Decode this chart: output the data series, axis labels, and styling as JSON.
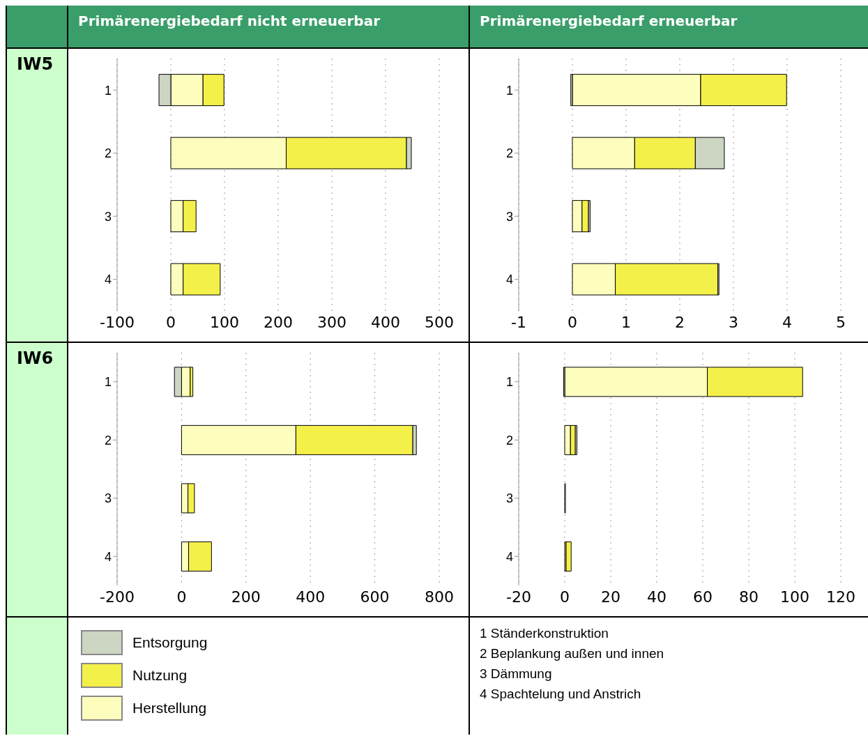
{
  "chart_data": [
    {
      "type": "bar",
      "orientation": "horizontal",
      "stacked": true,
      "title": "Primärenergiebedarf nicht erneuerbar",
      "subtitle": "IW5",
      "categories": [
        "1",
        "2",
        "3",
        "4"
      ],
      "xlim": [
        -100,
        500
      ],
      "xticks": [
        -100,
        0,
        100,
        200,
        300,
        400,
        500
      ],
      "grid": "x",
      "legend": "bottom",
      "series": [
        {
          "name": "Herstellung",
          "color": "#fdfdbd",
          "values": [
            60,
            215,
            23,
            23
          ]
        },
        {
          "name": "Nutzung",
          "color": "#f4f04a",
          "values": [
            39,
            224,
            24,
            69
          ]
        },
        {
          "name": "Entsorgung",
          "color": "#ccd6c2",
          "values": [
            -22,
            9,
            null,
            null
          ]
        }
      ]
    },
    {
      "type": "bar",
      "orientation": "horizontal",
      "stacked": true,
      "title": "Primärenergiebedarf erneuerbar",
      "categories": [
        "1",
        "2",
        "3",
        "4"
      ],
      "xlim": [
        -1,
        5
      ],
      "xticks": [
        -1,
        0,
        1,
        2,
        3,
        4,
        5
      ],
      "grid": "x",
      "series": [
        {
          "color": "#fdfdbd",
          "values": [
            2.39,
            1.16,
            0.18,
            0.8
          ]
        },
        {
          "color": "#f4f04a",
          "values": [
            1.6,
            1.13,
            0.12,
            1.91
          ]
        },
        {
          "color": "#ccd6c2",
          "values": [
            -0.03,
            0.54,
            0.03,
            0.02
          ]
        }
      ]
    },
    {
      "type": "bar",
      "orientation": "horizontal",
      "stacked": true,
      "subtitle": "IW6",
      "categories": [
        "1",
        "2",
        "3",
        "4"
      ],
      "xlim": [
        -200,
        800
      ],
      "xticks": [
        -200,
        0,
        200,
        400,
        600,
        800
      ],
      "grid": "x",
      "series": [
        {
          "color": "#fdfdbd",
          "values": [
            27,
            355,
            20,
            22
          ]
        },
        {
          "color": "#f4f04a",
          "values": [
            8,
            363,
            20,
            71
          ]
        },
        {
          "color": "#ccd6c2",
          "values": [
            -22,
            11,
            null,
            null
          ]
        }
      ]
    },
    {
      "type": "bar",
      "orientation": "horizontal",
      "stacked": true,
      "categories": [
        "1",
        "2",
        "3",
        "4"
      ],
      "xlim": [
        -20,
        120
      ],
      "xticks": [
        -20,
        0,
        20,
        40,
        60,
        80,
        100,
        120
      ],
      "grid": "x",
      "annotations": [
        "1 Ständerkonstruktion",
        "2 Beplankung außen und innen",
        "3 Dämmung",
        "4 Spachtelung und Anstrich"
      ],
      "series": [
        {
          "color": "#fdfdbd",
          "values": [
            62,
            2.5,
            0.3,
            0.6
          ]
        },
        {
          "color": "#f4f04a",
          "values": [
            41.4,
            2.1,
            null,
            2.2
          ]
        },
        {
          "color": "#ccd6c2",
          "values": [
            -0.5,
            0.7,
            null,
            null
          ]
        }
      ]
    }
  ]
}
